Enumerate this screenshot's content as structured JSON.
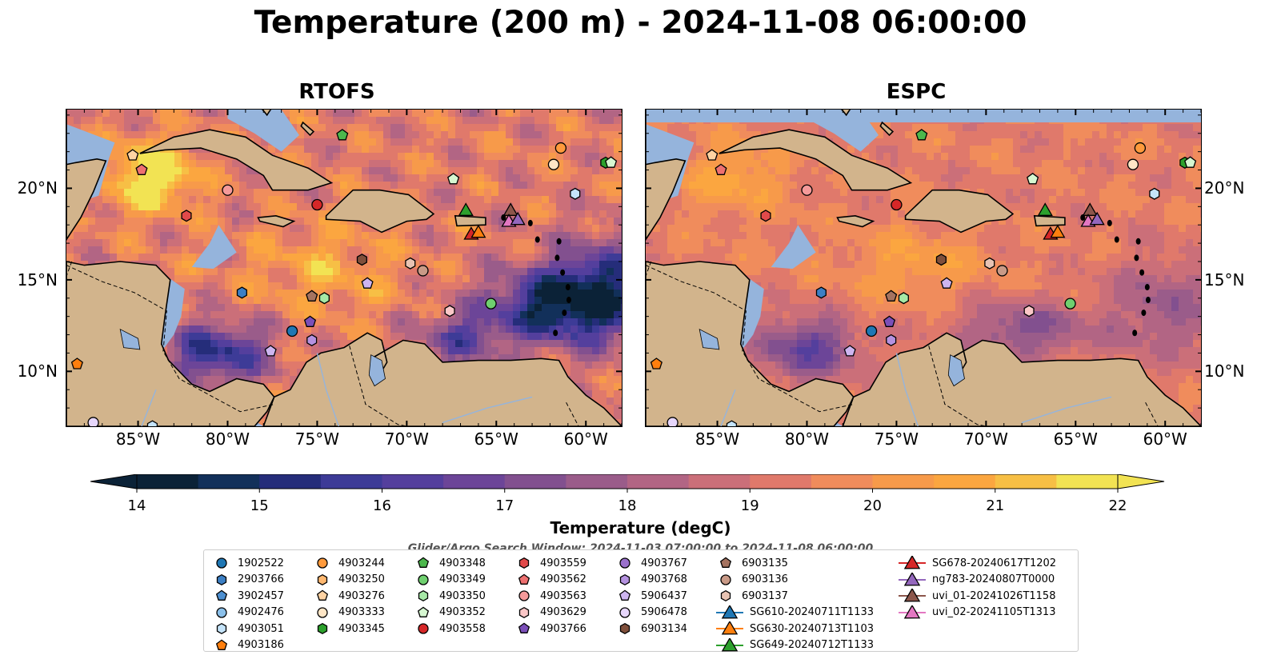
{
  "title": "Temperature (200 m) - 2024-11-08 06:00:00",
  "panels": [
    {
      "title": "RTOFS"
    },
    {
      "title": "ESPC"
    }
  ],
  "lon_labels": [
    "85°W",
    "80°W",
    "75°W",
    "70°W",
    "65°W",
    "60°W"
  ],
  "lat_labels": [
    "20°N",
    "15°N",
    "10°N"
  ],
  "colorbar": {
    "label": "Temperature (degC)",
    "min": 14,
    "max": 22,
    "ticks": [
      "14",
      "15",
      "16",
      "17",
      "18",
      "19",
      "20",
      "21",
      "22"
    ],
    "extend": "both",
    "colors": [
      "#0b2237",
      "#12305a",
      "#252d7a",
      "#3d3b97",
      "#543f9d",
      "#6c4598",
      "#82508f",
      "#9a5c8a",
      "#b26584",
      "#cb6f79",
      "#e0796b",
      "#f08c5c",
      "#f79a4a",
      "#fba640",
      "#f7bf45",
      "#f2e353"
    ]
  },
  "subtitle": "Glider/Argo Search Window: 2024-11-03 07:00:00 to 2024-11-08 06:00:00",
  "legend": [
    {
      "label": "1902522",
      "marker": "circle",
      "color": "#1f77b4"
    },
    {
      "label": "2903766",
      "marker": "hexagon",
      "color": "#3c7fc4"
    },
    {
      "label": "3902457",
      "marker": "pentagon",
      "color": "#4d8fd0"
    },
    {
      "label": "4902476",
      "marker": "circle",
      "color": "#8bc0ea"
    },
    {
      "label": "4903051",
      "marker": "hexagon",
      "color": "#c5e4fa"
    },
    {
      "label": "4903186",
      "marker": "pentagon",
      "color": "#ff7f0e"
    },
    {
      "label": "4903244",
      "marker": "circle",
      "color": "#ff9a3c"
    },
    {
      "label": "4903250",
      "marker": "hexagon",
      "color": "#ffb870"
    },
    {
      "label": "4903276",
      "marker": "pentagon",
      "color": "#ffd3a3"
    },
    {
      "label": "4903333",
      "marker": "circle",
      "color": "#ffe6c6"
    },
    {
      "label": "4903345",
      "marker": "hexagon",
      "color": "#2ca02c"
    },
    {
      "label": "4903348",
      "marker": "pentagon",
      "color": "#4cb84c"
    },
    {
      "label": "4903349",
      "marker": "circle",
      "color": "#6fd06f"
    },
    {
      "label": "4903350",
      "marker": "hexagon",
      "color": "#a6e8a6"
    },
    {
      "label": "4903352",
      "marker": "pentagon",
      "color": "#d6f7d1"
    },
    {
      "label": "4903558",
      "marker": "circle",
      "color": "#d62728"
    },
    {
      "label": "4903559",
      "marker": "hexagon",
      "color": "#e24a4a"
    },
    {
      "label": "4903562",
      "marker": "pentagon",
      "color": "#ee7070"
    },
    {
      "label": "4903563",
      "marker": "circle",
      "color": "#f59a9a"
    },
    {
      "label": "4903629",
      "marker": "hexagon",
      "color": "#fbc7c7"
    },
    {
      "label": "4903766",
      "marker": "pentagon",
      "color": "#7b4fb8"
    },
    {
      "label": "4903767",
      "marker": "circle",
      "color": "#9a70cc"
    },
    {
      "label": "4903768",
      "marker": "hexagon",
      "color": "#b592e0"
    },
    {
      "label": "5906437",
      "marker": "pentagon",
      "color": "#ceb5f0"
    },
    {
      "label": "5906478",
      "marker": "circle",
      "color": "#e6d6fb"
    },
    {
      "label": "6903134",
      "marker": "hexagon",
      "color": "#7f4f3b"
    },
    {
      "label": "6903135",
      "marker": "pentagon",
      "color": "#a57360"
    },
    {
      "label": "6903136",
      "marker": "circle",
      "color": "#c99a87"
    },
    {
      "label": "6903137",
      "marker": "hexagon",
      "color": "#e8c3b3"
    },
    {
      "label": "SG610-20240711T1133",
      "marker": "triangle-line",
      "color": "#1f77b4"
    },
    {
      "label": "SG630-20240713T1103",
      "marker": "triangle-line",
      "color": "#ff7f0e"
    },
    {
      "label": "SG649-20240712T1133",
      "marker": "triangle-line",
      "color": "#2ca02c"
    },
    {
      "label": "SG678-20240617T1202",
      "marker": "triangle-line",
      "color": "#d62728"
    },
    {
      "label": "ng783-20240807T0000",
      "marker": "triangle-line",
      "color": "#9467bd"
    },
    {
      "label": "uvi_01-20241026T1158",
      "marker": "triangle-line",
      "color": "#8c564b"
    },
    {
      "label": "uvi_02-20241105T1313",
      "marker": "triangle-line",
      "color": "#e377c2"
    }
  ],
  "platform_positions": [
    {
      "id": "4903186",
      "lon": -88.4,
      "lat": 10.4
    },
    {
      "id": "5906478",
      "lon": -87.5,
      "lat": 7.2
    },
    {
      "id": "4903051",
      "lon": -84.2,
      "lat": 7.0
    },
    {
      "id": "4903276",
      "lon": -85.3,
      "lat": 21.8
    },
    {
      "id": "4903562",
      "lon": -84.8,
      "lat": 21.0
    },
    {
      "id": "4903559",
      "lon": -82.3,
      "lat": 18.5
    },
    {
      "id": "4903563",
      "lon": -80.0,
      "lat": 19.9
    },
    {
      "id": "4903558",
      "lon": -75.0,
      "lat": 19.1
    },
    {
      "id": "4903348",
      "lon": -73.6,
      "lat": 22.9
    },
    {
      "id": "4903352",
      "lon": -67.4,
      "lat": 20.5
    },
    {
      "id": "4903244",
      "lon": -61.4,
      "lat": 22.2
    },
    {
      "id": "4903333",
      "lon": -61.8,
      "lat": 21.3
    },
    {
      "id": "4903051",
      "lon": -60.6,
      "lat": 19.7
    },
    {
      "id": "4903345",
      "lon": -58.9,
      "lat": 21.4
    },
    {
      "id": "4903352",
      "lon": -58.6,
      "lat": 21.4
    },
    {
      "id": "6903134",
      "lon": -72.5,
      "lat": 16.1
    },
    {
      "id": "6903137",
      "lon": -69.8,
      "lat": 15.9
    },
    {
      "id": "6903136",
      "lon": -69.1,
      "lat": 15.5
    },
    {
      "id": "5906437",
      "lon": -72.2,
      "lat": 14.8
    },
    {
      "id": "2903766",
      "lon": -79.2,
      "lat": 14.3
    },
    {
      "id": "6903135",
      "lon": -75.3,
      "lat": 14.1
    },
    {
      "id": "4903350",
      "lon": -74.6,
      "lat": 14.0
    },
    {
      "id": "4903629",
      "lon": -67.6,
      "lat": 13.3
    },
    {
      "id": "4903349",
      "lon": -65.3,
      "lat": 13.7
    },
    {
      "id": "4903766",
      "lon": -75.4,
      "lat": 12.7
    },
    {
      "id": "1902522",
      "lon": -76.4,
      "lat": 12.2
    },
    {
      "id": "4903768",
      "lon": -75.3,
      "lat": 11.7
    },
    {
      "id": "5906437",
      "lon": -77.6,
      "lat": 11.1
    },
    {
      "id": "SG649-20240712T1133",
      "lon": -66.7,
      "lat": 18.8
    },
    {
      "id": "uvi_01-20241026T1158",
      "lon": -64.2,
      "lat": 18.8
    },
    {
      "id": "SG678-20240617T1202",
      "lon": -66.4,
      "lat": 17.5
    },
    {
      "id": "SG630-20240713T1103",
      "lon": -66.0,
      "lat": 17.6
    },
    {
      "id": "uvi_02-20241105T1313",
      "lon": -64.3,
      "lat": 18.2
    },
    {
      "id": "ng783-20240807T0000",
      "lon": -63.8,
      "lat": 18.3
    }
  ]
}
